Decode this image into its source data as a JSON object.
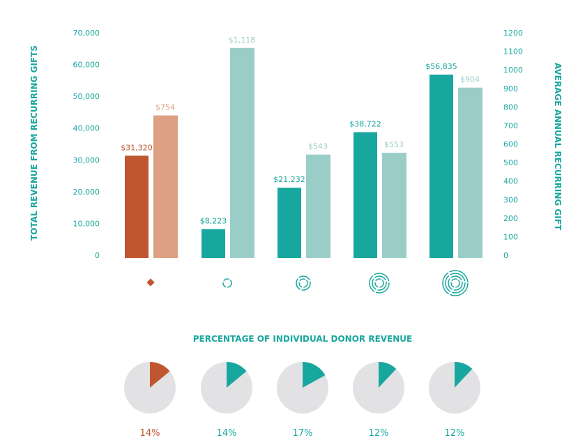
{
  "colors": {
    "accent_dark": "#c0562f",
    "accent_light": "#dda083",
    "teal_dark": "#18a79e",
    "teal_light": "#9acdc8",
    "pie_bg": "#e2e2e4"
  },
  "chart_data": [
    {
      "type": "bar",
      "ylabel": "TOTAL REVENUE FROM RECURRING GIFTS",
      "y2label": "AVERAGE ANNUAL RECURRING GIFT",
      "ylim": [
        0,
        70000
      ],
      "y2lim": [
        0,
        1200
      ],
      "yticks": [
        "0",
        "10,000",
        "20,000",
        "30,000",
        "40,000",
        "50,000",
        "60,000",
        "70,000"
      ],
      "yticks_values": [
        0,
        10000,
        20000,
        30000,
        40000,
        50000,
        60000,
        70000
      ],
      "y2ticks": [
        "0",
        "100",
        "200",
        "300",
        "400",
        "500",
        "600",
        "700",
        "800",
        "900",
        "1000",
        "1100",
        "1200"
      ],
      "y2ticks_values": [
        0,
        100,
        200,
        300,
        400,
        500,
        600,
        700,
        800,
        900,
        1000,
        1100,
        1200
      ],
      "categories": [
        "diamond-icon",
        "ring-1-icon",
        "ring-2-icon",
        "ring-3-icon",
        "ring-4-icon"
      ],
      "series": [
        {
          "name": "Total revenue",
          "axis": "left",
          "values": [
            31320,
            8223,
            21232,
            38722,
            56835
          ],
          "labels": [
            "$31,320",
            "$8,223",
            "$21,232",
            "$38,722",
            "$56,835"
          ]
        },
        {
          "name": "Average annual gift",
          "axis": "right",
          "values": [
            754,
            1118,
            543,
            553,
            904
          ],
          "labels": [
            "$754",
            "$1,118",
            "$543",
            "$553",
            "$904"
          ]
        }
      ]
    },
    {
      "type": "pie",
      "title": "PERCENTAGE OF INDIVIDUAL DONOR REVENUE",
      "values": [
        14,
        14,
        17,
        12,
        12
      ],
      "labels": [
        "14%",
        "14%",
        "17%",
        "12%",
        "12%"
      ]
    }
  ]
}
